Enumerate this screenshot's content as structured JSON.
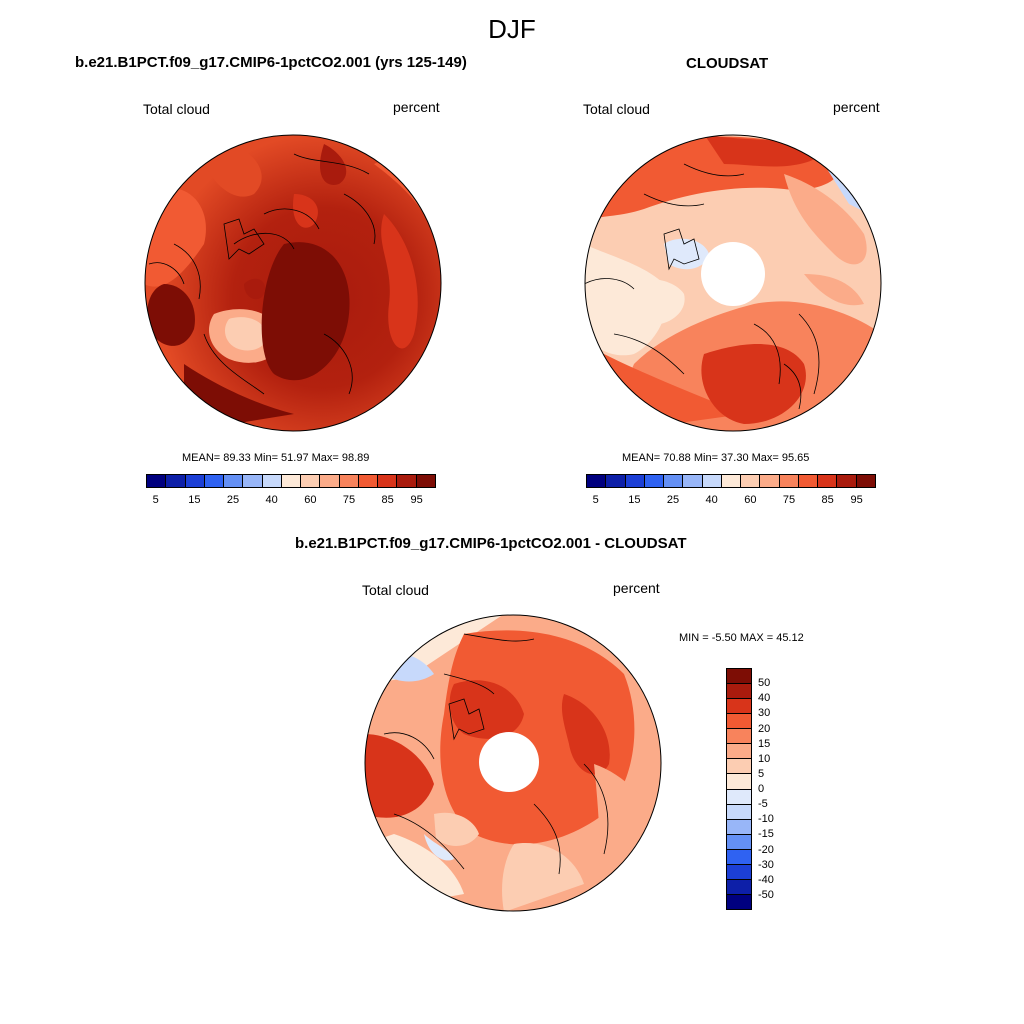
{
  "title": "DJF",
  "panels": [
    {
      "id": "model",
      "title": "b.e21.B1PCT.f09_g17.CMIP6-1pctCO2.001 (yrs 125-149)",
      "left_label": "Total cloud",
      "right_label": "percent",
      "stats": "MEAN=  89.33  Min=  51.97  Max=  98.89",
      "cbar_ticks": [
        "5",
        "15",
        "25",
        "40",
        "60",
        "75",
        "85",
        "95"
      ]
    },
    {
      "id": "obs",
      "title": "CLOUDSAT",
      "left_label": "Total cloud",
      "right_label": "percent",
      "stats": "MEAN=  70.88  Min=  37.30  Max=  95.65",
      "cbar_ticks": [
        "5",
        "15",
        "25",
        "40",
        "60",
        "75",
        "85",
        "95"
      ]
    },
    {
      "id": "diff",
      "title": "b.e21.B1PCT.f09_g17.CMIP6-1pctCO2.001 - CLOUDSAT",
      "left_label": "Total cloud",
      "right_label": "percent",
      "stats": "MIN =  -5.50 MAX =  45.12",
      "cbar_ticks": [
        "50",
        "40",
        "30",
        "20",
        "15",
        "10",
        "5",
        "0",
        "-5",
        "-10",
        "-15",
        "-20",
        "-30",
        "-40",
        "-50"
      ]
    }
  ],
  "colors": {
    "abs_scale": [
      "#00007f",
      "#0d1fa8",
      "#1c3fd6",
      "#2f62f2",
      "#6490f5",
      "#98b6f8",
      "#c7d9fb",
      "#fde9d8",
      "#fccdb2",
      "#fbab89",
      "#f8835c",
      "#f15a33",
      "#d8341a",
      "#a91b0d",
      "#7d0d05"
    ],
    "diff_scale": [
      "#7d0d05",
      "#a91b0d",
      "#d8341a",
      "#f15a33",
      "#f8835c",
      "#fbab89",
      "#fccdb2",
      "#fde9d8",
      "#dfe9fb",
      "#c7d9fb",
      "#98b6f8",
      "#6490f5",
      "#2f62f2",
      "#1c3fd6",
      "#0d1fa8",
      "#00007f"
    ]
  }
}
